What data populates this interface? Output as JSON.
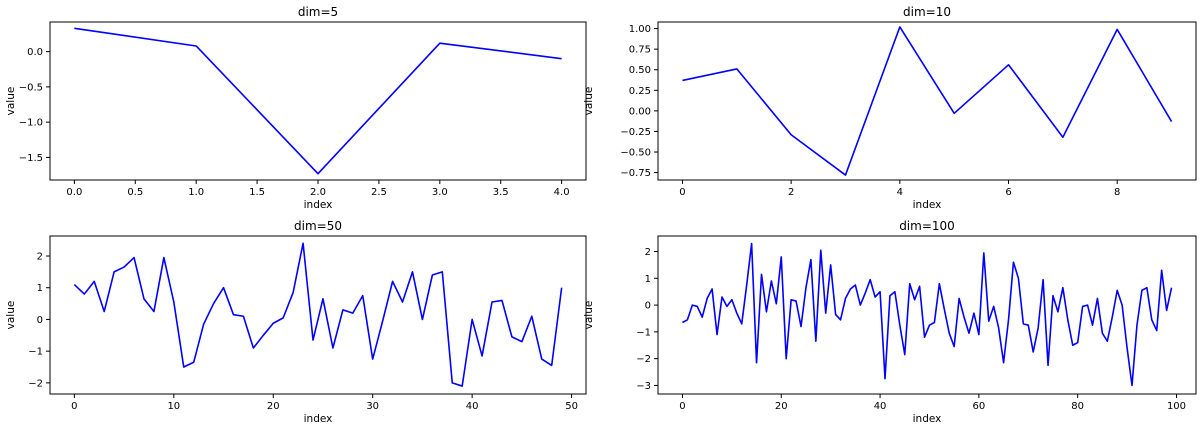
{
  "colors": {
    "series": "#0000ff",
    "axes": "#000000",
    "background": "#ffffff"
  },
  "chart_data": [
    {
      "type": "line",
      "title": "dim=5",
      "xlabel": "index",
      "ylabel": "value",
      "xlim": [
        -0.2,
        4.2
      ],
      "ylim": [
        -1.82,
        0.42
      ],
      "xticks": [
        0.0,
        0.5,
        1.0,
        1.5,
        2.0,
        2.5,
        3.0,
        3.5,
        4.0
      ],
      "xtick_labels": [
        "0.0",
        "0.5",
        "1.0",
        "1.5",
        "2.0",
        "2.5",
        "3.0",
        "3.5",
        "4.0"
      ],
      "yticks": [
        0.0,
        -0.5,
        -1.0,
        -1.5
      ],
      "ytick_labels": [
        "0.0",
        "−0.5",
        "−1.0",
        "−1.5"
      ],
      "grid": false,
      "series": [
        {
          "x": [
            0,
            1,
            2,
            3,
            4
          ],
          "values": [
            0.33,
            0.08,
            -1.73,
            0.12,
            -0.1
          ]
        }
      ]
    },
    {
      "type": "line",
      "title": "dim=10",
      "xlabel": "index",
      "ylabel": "value",
      "xlim": [
        -0.45,
        9.45
      ],
      "ylim": [
        -0.84,
        1.08
      ],
      "xticks": [
        0,
        2,
        4,
        6,
        8
      ],
      "xtick_labels": [
        "0",
        "2",
        "4",
        "6",
        "8"
      ],
      "yticks": [
        1.0,
        0.75,
        0.5,
        0.25,
        0.0,
        -0.25,
        -0.5,
        -0.75
      ],
      "ytick_labels": [
        "1.00",
        "0.75",
        "0.50",
        "0.25",
        "0.00",
        "−0.25",
        "−0.50",
        "−0.75"
      ],
      "grid": false,
      "series": [
        {
          "x": [
            0,
            1,
            2,
            3,
            4,
            5,
            6,
            7,
            8,
            9
          ],
          "values": [
            0.37,
            0.51,
            -0.29,
            -0.78,
            1.02,
            -0.03,
            0.56,
            -0.32,
            0.99,
            -0.13
          ]
        }
      ]
    },
    {
      "type": "line",
      "title": "dim=50",
      "xlabel": "index",
      "ylabel": "value",
      "xlim": [
        -2.45,
        51.45
      ],
      "ylim": [
        -2.35,
        2.63
      ],
      "xticks": [
        0,
        10,
        20,
        30,
        40,
        50
      ],
      "xtick_labels": [
        "0",
        "10",
        "20",
        "30",
        "40",
        "50"
      ],
      "yticks": [
        2,
        1,
        0,
        -1,
        -2
      ],
      "ytick_labels": [
        "2",
        "1",
        "0",
        "−1",
        "−2"
      ],
      "grid": false,
      "series": [
        {
          "x": [
            0,
            1,
            2,
            3,
            4,
            5,
            6,
            7,
            8,
            9,
            10,
            11,
            12,
            13,
            14,
            15,
            16,
            17,
            18,
            19,
            20,
            21,
            22,
            23,
            24,
            25,
            26,
            27,
            28,
            29,
            30,
            31,
            32,
            33,
            34,
            35,
            36,
            37,
            38,
            39,
            40,
            41,
            42,
            43,
            44,
            45,
            46,
            47,
            48,
            49
          ],
          "values": [
            1.1,
            0.8,
            1.2,
            0.25,
            1.5,
            1.65,
            1.95,
            0.65,
            0.25,
            1.95,
            0.55,
            -1.5,
            -1.35,
            -0.15,
            0.5,
            1.0,
            0.15,
            0.1,
            -0.9,
            -0.5,
            -0.12,
            0.05,
            0.85,
            2.4,
            -0.65,
            0.65,
            -0.9,
            0.3,
            0.2,
            0.75,
            -1.25,
            -0.05,
            1.2,
            0.55,
            1.5,
            0.0,
            1.4,
            1.5,
            -2.0,
            -2.1,
            0.0,
            -1.15,
            0.55,
            0.6,
            -0.55,
            -0.7,
            0.1,
            -1.25,
            -1.45,
            1.0
          ]
        }
      ]
    },
    {
      "type": "line",
      "title": "dim=100",
      "xlabel": "index",
      "ylabel": "value",
      "xlim": [
        -4.95,
        103.95
      ],
      "ylim": [
        -3.32,
        2.58
      ],
      "xticks": [
        0,
        20,
        40,
        60,
        80,
        100
      ],
      "xtick_labels": [
        "0",
        "20",
        "40",
        "60",
        "80",
        "100"
      ],
      "yticks": [
        2,
        1,
        0,
        -1,
        -2,
        -3
      ],
      "ytick_labels": [
        "2",
        "1",
        "0",
        "−1",
        "−2",
        "−3"
      ],
      "grid": false,
      "series": [
        {
          "x": [
            0,
            1,
            2,
            3,
            4,
            5,
            6,
            7,
            8,
            9,
            10,
            11,
            12,
            13,
            14,
            15,
            16,
            17,
            18,
            19,
            20,
            21,
            22,
            23,
            24,
            25,
            26,
            27,
            28,
            29,
            30,
            31,
            32,
            33,
            34,
            35,
            36,
            37,
            38,
            39,
            40,
            41,
            42,
            43,
            44,
            45,
            46,
            47,
            48,
            49,
            50,
            51,
            52,
            53,
            54,
            55,
            56,
            57,
            58,
            59,
            60,
            61,
            62,
            63,
            64,
            65,
            66,
            67,
            68,
            69,
            70,
            71,
            72,
            73,
            74,
            75,
            76,
            77,
            78,
            79,
            80,
            81,
            82,
            83,
            84,
            85,
            86,
            87,
            88,
            89,
            90,
            91,
            92,
            93,
            94,
            95,
            96,
            97,
            98,
            99
          ],
          "values": [
            -0.65,
            -0.55,
            0.0,
            -0.05,
            -0.45,
            0.25,
            0.6,
            -1.1,
            0.3,
            -0.05,
            0.2,
            -0.3,
            -0.7,
            0.75,
            2.3,
            -2.15,
            1.15,
            -0.25,
            0.9,
            0.05,
            1.8,
            -2.0,
            0.2,
            0.15,
            -0.8,
            0.65,
            1.7,
            -1.35,
            2.05,
            -0.3,
            1.5,
            -0.35,
            -0.55,
            0.25,
            0.6,
            0.75,
            0.0,
            0.45,
            0.95,
            0.3,
            0.5,
            -2.75,
            0.35,
            0.5,
            -0.75,
            -1.85,
            0.8,
            0.2,
            0.7,
            -1.2,
            -0.75,
            -0.65,
            0.8,
            -0.15,
            -1.05,
            -1.55,
            0.25,
            -0.45,
            -1.05,
            -0.3,
            -1.1,
            1.95,
            -0.6,
            -0.05,
            -0.85,
            -2.15,
            -0.55,
            1.6,
            1.0,
            -0.7,
            -0.75,
            -1.75,
            -0.85,
            0.95,
            -2.25,
            0.35,
            -0.25,
            0.65,
            -0.55,
            -1.5,
            -1.4,
            -0.05,
            0.0,
            -0.75,
            0.25,
            -1.05,
            -1.35,
            -0.45,
            0.55,
            0.0,
            -1.6,
            -3.0,
            -0.75,
            0.55,
            0.65,
            -0.55,
            -0.95,
            1.3,
            -0.2,
            0.65
          ]
        }
      ]
    }
  ]
}
